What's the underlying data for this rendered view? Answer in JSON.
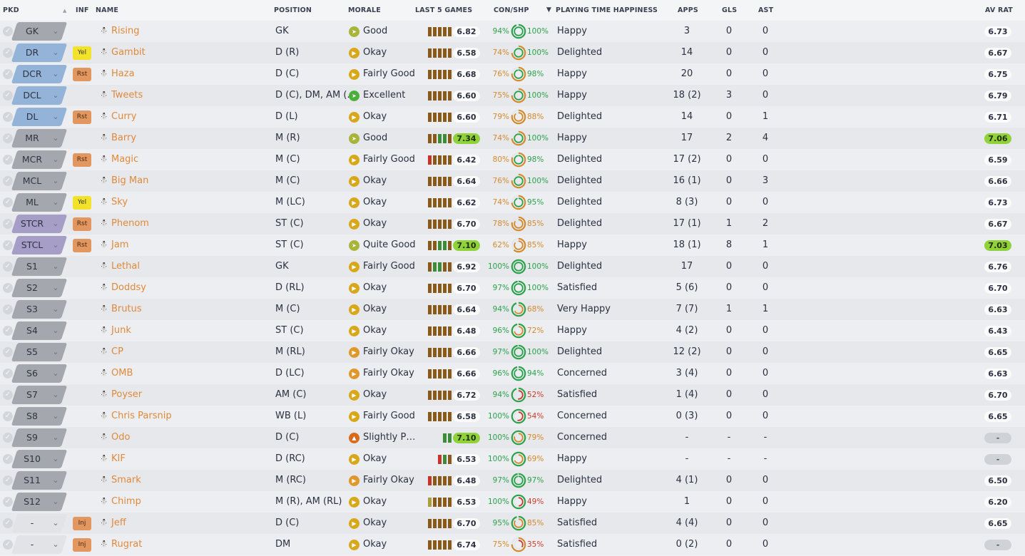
{
  "header": {
    "pkd": "PKD",
    "inf": "INF",
    "name": "NAME",
    "position": "POSITION",
    "morale": "MORALE",
    "last5": "LAST 5 GAMES",
    "conshp": "CON/SHP",
    "pth": "PLAYING TIME HAPPINESS",
    "apps": "APPS",
    "gls": "GLS",
    "ast": "AST",
    "avrat": "AV RAT"
  },
  "colors": {
    "accent_name": "#e08a3a",
    "rating_highlight": "#8fd23a",
    "ring_green": "#2aa24a",
    "ring_orange": "#d48a2a",
    "ring_red": "#cc3a2a"
  },
  "players": [
    {
      "pkd": "GK",
      "pkd_style": "gray",
      "inf": "",
      "name": "Rising",
      "position": "GK",
      "morale": "Good",
      "morale_icon": "good",
      "form": [
        "b",
        "b",
        "b",
        "b",
        "b"
      ],
      "last5": "6.82",
      "last5_hi": false,
      "con": "94%",
      "con_pct": 94,
      "shp": "100%",
      "shp_pct": 100,
      "pth": "Happy",
      "apps": "3",
      "gls": "0",
      "ast": "0",
      "avrat": "6.73",
      "avrat_hi": false
    },
    {
      "pkd": "DR",
      "pkd_style": "blue",
      "inf": "Yel",
      "name": "Gambit",
      "position": "D (R)",
      "morale": "Okay",
      "morale_icon": "okay",
      "form": [
        "b",
        "b",
        "b",
        "b",
        "b"
      ],
      "last5": "6.58",
      "last5_hi": false,
      "con": "74%",
      "con_pct": 74,
      "shp": "100%",
      "shp_pct": 100,
      "pth": "Delighted",
      "apps": "14",
      "gls": "0",
      "ast": "0",
      "avrat": "6.67",
      "avrat_hi": false
    },
    {
      "pkd": "DCR",
      "pkd_style": "blue",
      "inf": "Rst",
      "name": "Haza",
      "position": "D (C)",
      "morale": "Fairly Good",
      "morale_icon": "okay",
      "form": [
        "b",
        "b",
        "b",
        "b",
        "b"
      ],
      "last5": "6.68",
      "last5_hi": false,
      "con": "76%",
      "con_pct": 76,
      "shp": "98%",
      "shp_pct": 98,
      "pth": "Happy",
      "apps": "20",
      "gls": "0",
      "ast": "0",
      "avrat": "6.75",
      "avrat_hi": false
    },
    {
      "pkd": "DCL",
      "pkd_style": "blue",
      "inf": "",
      "name": "Tweets",
      "position": "D (C), DM, AM (…",
      "morale": "Excellent",
      "morale_icon": "exc",
      "form": [
        "b",
        "b",
        "b",
        "b",
        "b"
      ],
      "last5": "6.60",
      "last5_hi": false,
      "con": "75%",
      "con_pct": 75,
      "shp": "100%",
      "shp_pct": 100,
      "pth": "Happy",
      "apps": "18 (2)",
      "gls": "3",
      "ast": "0",
      "avrat": "6.79",
      "avrat_hi": false
    },
    {
      "pkd": "DL",
      "pkd_style": "blue",
      "inf": "Rst",
      "name": "Curry",
      "position": "D (L)",
      "morale": "Okay",
      "morale_icon": "okay",
      "form": [
        "b",
        "b",
        "b",
        "b",
        "b"
      ],
      "last5": "6.60",
      "last5_hi": false,
      "con": "79%",
      "con_pct": 79,
      "shp": "88%",
      "shp_pct": 88,
      "pth": "Delighted",
      "apps": "14",
      "gls": "0",
      "ast": "1",
      "avrat": "6.71",
      "avrat_hi": false
    },
    {
      "pkd": "MR",
      "pkd_style": "gray",
      "inf": "",
      "name": "Barry",
      "position": "M (R)",
      "morale": "Good",
      "morale_icon": "good",
      "form": [
        "b",
        "b",
        "g",
        "g",
        "b"
      ],
      "last5": "7.34",
      "last5_hi": true,
      "con": "74%",
      "con_pct": 74,
      "shp": "100%",
      "shp_pct": 100,
      "pth": "Happy",
      "apps": "17",
      "gls": "2",
      "ast": "4",
      "avrat": "7.06",
      "avrat_hi": true
    },
    {
      "pkd": "MCR",
      "pkd_style": "gray",
      "inf": "Rst",
      "name": "Magic",
      "position": "M (C)",
      "morale": "Fairly Good",
      "morale_icon": "okay",
      "form": [
        "r",
        "b",
        "b",
        "b",
        "b"
      ],
      "last5": "6.42",
      "last5_hi": false,
      "con": "80%",
      "con_pct": 80,
      "shp": "98%",
      "shp_pct": 98,
      "pth": "Delighted",
      "apps": "17 (2)",
      "gls": "0",
      "ast": "0",
      "avrat": "6.59",
      "avrat_hi": false
    },
    {
      "pkd": "MCL",
      "pkd_style": "gray",
      "inf": "",
      "name": "Big Man",
      "position": "M (C)",
      "morale": "Okay",
      "morale_icon": "okay",
      "form": [
        "b",
        "b",
        "b",
        "b",
        "b"
      ],
      "last5": "6.64",
      "last5_hi": false,
      "con": "76%",
      "con_pct": 76,
      "shp": "100%",
      "shp_pct": 100,
      "pth": "Delighted",
      "apps": "16 (1)",
      "gls": "0",
      "ast": "3",
      "avrat": "6.66",
      "avrat_hi": false
    },
    {
      "pkd": "ML",
      "pkd_style": "gray",
      "inf": "Yel",
      "name": "Sky",
      "position": "M (LC)",
      "morale": "Okay",
      "morale_icon": "okay",
      "form": [
        "b",
        "b",
        "b",
        "b",
        "b"
      ],
      "last5": "6.62",
      "last5_hi": false,
      "con": "74%",
      "con_pct": 74,
      "shp": "95%",
      "shp_pct": 95,
      "pth": "Delighted",
      "apps": "8 (3)",
      "gls": "0",
      "ast": "0",
      "avrat": "6.73",
      "avrat_hi": false
    },
    {
      "pkd": "STCR",
      "pkd_style": "purple",
      "inf": "Rst",
      "name": "Phenom",
      "position": "ST (C)",
      "morale": "Okay",
      "morale_icon": "okay",
      "form": [
        "b",
        "b",
        "b",
        "b",
        "b"
      ],
      "last5": "6.70",
      "last5_hi": false,
      "con": "78%",
      "con_pct": 78,
      "shp": "85%",
      "shp_pct": 85,
      "pth": "Delighted",
      "apps": "17 (1)",
      "gls": "1",
      "ast": "2",
      "avrat": "6.67",
      "avrat_hi": false
    },
    {
      "pkd": "STCL",
      "pkd_style": "purple",
      "inf": "Rst",
      "name": "Jam",
      "position": "ST (C)",
      "morale": "Quite Good",
      "morale_icon": "good",
      "form": [
        "b",
        "b",
        "g",
        "g",
        "b"
      ],
      "last5": "7.10",
      "last5_hi": true,
      "con": "62%",
      "con_pct": 62,
      "shp": "85%",
      "shp_pct": 85,
      "pth": "Happy",
      "apps": "18 (1)",
      "gls": "8",
      "ast": "1",
      "avrat": "7.03",
      "avrat_hi": true
    },
    {
      "pkd": "S1",
      "pkd_style": "gray",
      "inf": "",
      "name": "Lethal",
      "position": "GK",
      "morale": "Fairly Good",
      "morale_icon": "okay",
      "form": [
        "b",
        "g",
        "g",
        "b",
        "b"
      ],
      "last5": "6.92",
      "last5_hi": false,
      "con": "100%",
      "con_pct": 100,
      "shp": "100%",
      "shp_pct": 100,
      "pth": "Delighted",
      "apps": "17",
      "gls": "0",
      "ast": "0",
      "avrat": "6.76",
      "avrat_hi": false
    },
    {
      "pkd": "S2",
      "pkd_style": "gray",
      "inf": "",
      "name": "Doddsy",
      "position": "D (RL)",
      "morale": "Okay",
      "morale_icon": "okay",
      "form": [
        "b",
        "b",
        "b",
        "b",
        "b"
      ],
      "last5": "6.70",
      "last5_hi": false,
      "con": "97%",
      "con_pct": 97,
      "shp": "100%",
      "shp_pct": 100,
      "pth": "Satisfied",
      "apps": "5 (6)",
      "gls": "0",
      "ast": "0",
      "avrat": "6.70",
      "avrat_hi": false
    },
    {
      "pkd": "S3",
      "pkd_style": "gray",
      "inf": "",
      "name": "Brutus",
      "position": "M (C)",
      "morale": "Okay",
      "morale_icon": "okay",
      "form": [
        "b",
        "b",
        "b",
        "b",
        "b"
      ],
      "last5": "6.64",
      "last5_hi": false,
      "con": "94%",
      "con_pct": 94,
      "shp": "68%",
      "shp_pct": 68,
      "pth": "Very Happy",
      "apps": "7 (7)",
      "gls": "1",
      "ast": "1",
      "avrat": "6.63",
      "avrat_hi": false
    },
    {
      "pkd": "S4",
      "pkd_style": "gray",
      "inf": "",
      "name": "Junk",
      "position": "ST (C)",
      "morale": "Okay",
      "morale_icon": "okay",
      "form": [
        "b",
        "b",
        "b",
        "b",
        "b"
      ],
      "last5": "6.48",
      "last5_hi": false,
      "con": "96%",
      "con_pct": 96,
      "shp": "72%",
      "shp_pct": 72,
      "pth": "Happy",
      "apps": "4 (2)",
      "gls": "0",
      "ast": "0",
      "avrat": "6.43",
      "avrat_hi": false
    },
    {
      "pkd": "S5",
      "pkd_style": "gray",
      "inf": "",
      "name": "CP",
      "position": "M (RL)",
      "morale": "Fairly Okay",
      "morale_icon": "fok",
      "form": [
        "b",
        "b",
        "b",
        "b",
        "b"
      ],
      "last5": "6.66",
      "last5_hi": false,
      "con": "97%",
      "con_pct": 97,
      "shp": "100%",
      "shp_pct": 100,
      "pth": "Delighted",
      "apps": "12 (2)",
      "gls": "0",
      "ast": "0",
      "avrat": "6.65",
      "avrat_hi": false
    },
    {
      "pkd": "S6",
      "pkd_style": "gray",
      "inf": "",
      "name": "OMB",
      "position": "D (LC)",
      "morale": "Fairly Okay",
      "morale_icon": "fok",
      "form": [
        "b",
        "b",
        "b",
        "b",
        "b"
      ],
      "last5": "6.66",
      "last5_hi": false,
      "con": "96%",
      "con_pct": 96,
      "shp": "94%",
      "shp_pct": 94,
      "pth": "Concerned",
      "apps": "3 (4)",
      "gls": "0",
      "ast": "0",
      "avrat": "6.63",
      "avrat_hi": false
    },
    {
      "pkd": "S7",
      "pkd_style": "gray",
      "inf": "",
      "name": "Poyser",
      "position": "AM (C)",
      "morale": "Okay",
      "morale_icon": "okay",
      "form": [
        "b",
        "b",
        "b",
        "b",
        "b"
      ],
      "last5": "6.72",
      "last5_hi": false,
      "con": "94%",
      "con_pct": 94,
      "shp": "52%",
      "shp_pct": 52,
      "pth": "Satisfied",
      "apps": "1 (4)",
      "gls": "0",
      "ast": "0",
      "avrat": "6.70",
      "avrat_hi": false
    },
    {
      "pkd": "S8",
      "pkd_style": "gray",
      "inf": "",
      "name": "Chris Parsnip",
      "position": "WB (L)",
      "morale": "Fairly Good",
      "morale_icon": "okay",
      "form": [
        "b",
        "b",
        "b",
        "b",
        "b"
      ],
      "last5": "6.58",
      "last5_hi": false,
      "con": "100%",
      "con_pct": 100,
      "shp": "54%",
      "shp_pct": 54,
      "pth": "Concerned",
      "apps": "0 (3)",
      "gls": "0",
      "ast": "0",
      "avrat": "6.65",
      "avrat_hi": false
    },
    {
      "pkd": "S9",
      "pkd_style": "gray",
      "inf": "",
      "name": "Odo",
      "position": "D (C)",
      "morale": "Slightly P…",
      "morale_icon": "sp",
      "form": [
        "g",
        "g"
      ],
      "last5": "7.10",
      "last5_hi": true,
      "con": "100%",
      "con_pct": 100,
      "shp": "79%",
      "shp_pct": 79,
      "pth": "Concerned",
      "apps": "-",
      "gls": "-",
      "ast": "-",
      "avrat": "-",
      "avrat_hi": false
    },
    {
      "pkd": "S10",
      "pkd_style": "gray",
      "inf": "",
      "name": "KIF",
      "position": "D (RC)",
      "morale": "Okay",
      "morale_icon": "okay",
      "form": [
        "r",
        "g",
        "b"
      ],
      "last5": "6.53",
      "last5_hi": false,
      "con": "100%",
      "con_pct": 100,
      "shp": "69%",
      "shp_pct": 69,
      "pth": "Happy",
      "apps": "-",
      "gls": "-",
      "ast": "-",
      "avrat": "-",
      "avrat_hi": false
    },
    {
      "pkd": "S11",
      "pkd_style": "gray",
      "inf": "",
      "name": "Smark",
      "position": "M (RC)",
      "morale": "Fairly Okay",
      "morale_icon": "fok",
      "form": [
        "r",
        "b",
        "b",
        "b",
        "b"
      ],
      "last5": "6.48",
      "last5_hi": false,
      "con": "97%",
      "con_pct": 97,
      "shp": "97%",
      "shp_pct": 97,
      "pth": "Delighted",
      "apps": "4 (1)",
      "gls": "0",
      "ast": "0",
      "avrat": "6.50",
      "avrat_hi": false
    },
    {
      "pkd": "S12",
      "pkd_style": "gray",
      "inf": "",
      "name": "Chimp",
      "position": "M (R), AM (RL)",
      "morale": "Okay",
      "morale_icon": "okay",
      "form": [
        "y",
        "b",
        "b",
        "b",
        "b"
      ],
      "last5": "6.53",
      "last5_hi": false,
      "con": "100%",
      "con_pct": 100,
      "shp": "49%",
      "shp_pct": 49,
      "pth": "Happy",
      "apps": "1",
      "gls": "0",
      "ast": "0",
      "avrat": "6.20",
      "avrat_hi": false
    },
    {
      "pkd": "-",
      "pkd_style": "dash",
      "inf": "Inj",
      "name": "Jeff",
      "position": "D (C)",
      "morale": "Okay",
      "morale_icon": "okay",
      "form": [
        "b",
        "b",
        "b",
        "b",
        "b"
      ],
      "last5": "6.70",
      "last5_hi": false,
      "con": "95%",
      "con_pct": 95,
      "shp": "85%",
      "shp_pct": 85,
      "pth": "Satisfied",
      "apps": "4 (4)",
      "gls": "0",
      "ast": "0",
      "avrat": "6.65",
      "avrat_hi": false
    },
    {
      "pkd": "-",
      "pkd_style": "dash",
      "inf": "Inj",
      "name": "Rugrat",
      "position": "DM",
      "morale": "Okay",
      "morale_icon": "okay",
      "form": [
        "b",
        "b",
        "b",
        "b",
        "b"
      ],
      "last5": "6.74",
      "last5_hi": false,
      "con": "75%",
      "con_pct": 75,
      "shp": "35%",
      "shp_pct": 35,
      "pth": "Satisfied",
      "apps": "0 (2)",
      "gls": "0",
      "ast": "0",
      "avrat": "-",
      "avrat_hi": false
    }
  ]
}
